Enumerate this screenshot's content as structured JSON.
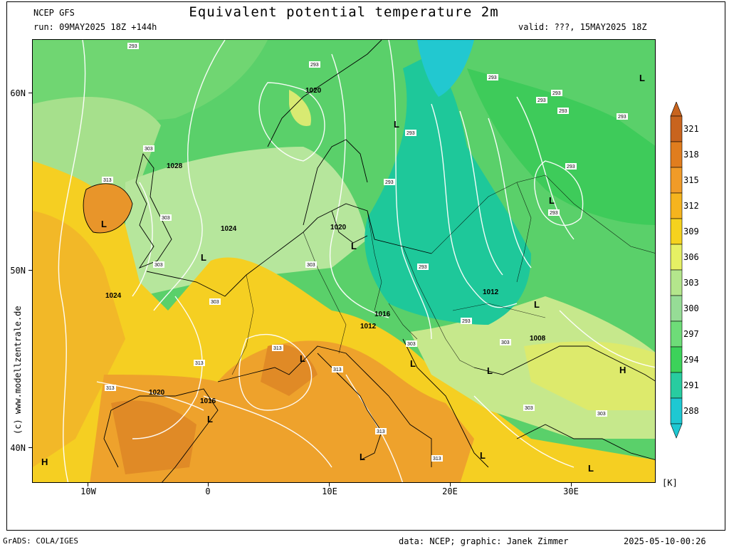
{
  "header": {
    "model": "NCEP GFS",
    "run": "run: 09MAY2025 18Z +144h",
    "title": "Equivalent potential temperature 2m",
    "valid": "valid: ???, 15MAY2025 18Z"
  },
  "axes": {
    "x_labels": [
      "10W",
      "0",
      "10E",
      "20E",
      "30E"
    ],
    "y_labels": [
      "60N",
      "50N",
      "40N"
    ],
    "unit": "[K]"
  },
  "colorbar": {
    "labels": [
      "321",
      "318",
      "315",
      "312",
      "309",
      "306",
      "303",
      "300",
      "297",
      "294",
      "291",
      "288"
    ],
    "colors": [
      "#c8641e",
      "#e07d1e",
      "#f09b28",
      "#f5b41e",
      "#f5d21e",
      "#e6f064",
      "#b4e68c",
      "#96dc96",
      "#6edc78",
      "#3cd25a",
      "#28cca0",
      "#1ec8d2"
    ]
  },
  "pressure_labels": [
    "1020",
    "1028",
    "1024",
    "1020",
    "1024",
    "1016",
    "1012",
    "1012",
    "1016",
    "1020",
    "1008"
  ],
  "theta_labels": [
    "293",
    "293",
    "293",
    "293",
    "293",
    "293",
    "293",
    "293",
    "293",
    "293",
    "293",
    "293",
    "293",
    "303",
    "303",
    "303",
    "303",
    "303",
    "303",
    "303",
    "303",
    "303",
    "313",
    "313",
    "313",
    "313",
    "313",
    "313",
    "313"
  ],
  "low_marker": "L",
  "high_marker": "H",
  "credit": "(c) www.modellzentrale.de",
  "footer": {
    "left": "GrADS: COLA/IGES",
    "middle": "data: NCEP; graphic: Janek Zimmer",
    "right": "2025-05-10-00:26"
  }
}
